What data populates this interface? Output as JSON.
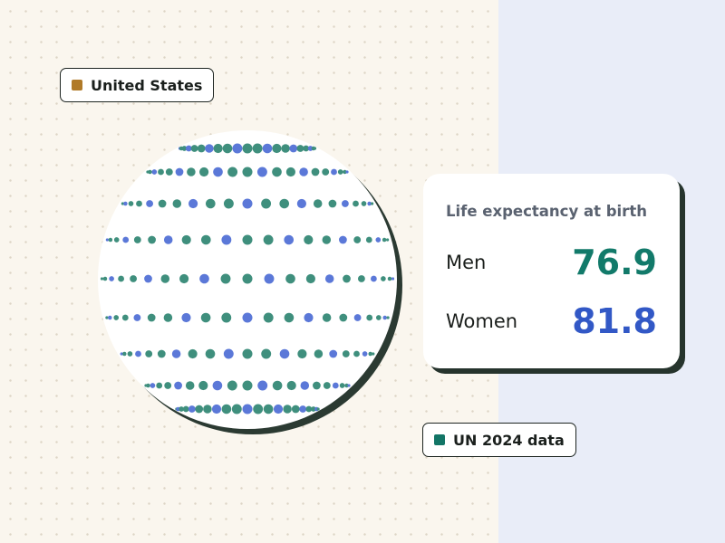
{
  "country_tag": {
    "label": "United States",
    "swatch_color": "#b07a28"
  },
  "source_tag": {
    "label": "UN 2024 data",
    "swatch_color": "#127566"
  },
  "card": {
    "title": "Life expectancy at birth",
    "rows": [
      {
        "label": "Men",
        "value": "76.9",
        "color": "#127a6a"
      },
      {
        "label": "Women",
        "value": "81.8",
        "color": "#3258c6"
      }
    ]
  },
  "globe": {
    "fill": "#ffffff",
    "shadow_color": "#2b3a32",
    "dot_colors": [
      "#3f8f7d",
      "#5b78d8"
    ]
  }
}
